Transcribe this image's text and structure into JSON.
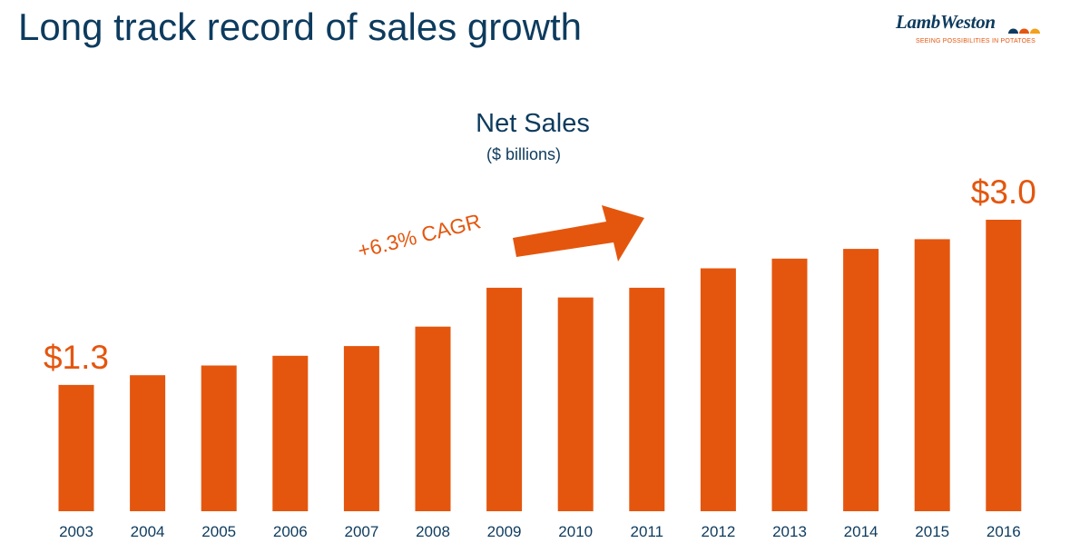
{
  "slide": {
    "title": "Long track record of sales growth"
  },
  "logo": {
    "wordmark": "LambWeston",
    "tagline": "SEEING POSSIBILITIES IN POTATOES"
  },
  "colors": {
    "bar": "#e4560e",
    "title": "#0d3b5e",
    "axis_text": "#0d3b5e",
    "annotation": "#e4560e"
  },
  "chart_data": {
    "type": "bar",
    "title": "Net Sales",
    "subtitle": "($ billions)",
    "xlabel": "",
    "ylabel": "",
    "categories": [
      "2003",
      "2004",
      "2005",
      "2006",
      "2007",
      "2008",
      "2009",
      "2010",
      "2011",
      "2012",
      "2013",
      "2014",
      "2015",
      "2016"
    ],
    "values": [
      1.3,
      1.4,
      1.5,
      1.6,
      1.7,
      1.9,
      2.3,
      2.2,
      2.3,
      2.5,
      2.6,
      2.7,
      2.8,
      3.0
    ],
    "ylim": [
      0,
      3.0
    ],
    "grid": false,
    "legend": "none",
    "data_labels": [
      {
        "category": "2003",
        "text": "$1.3"
      },
      {
        "category": "2016",
        "text": "$3.0"
      }
    ],
    "annotations": [
      {
        "text": "+6.3% CAGR",
        "kind": "arrow"
      }
    ]
  }
}
